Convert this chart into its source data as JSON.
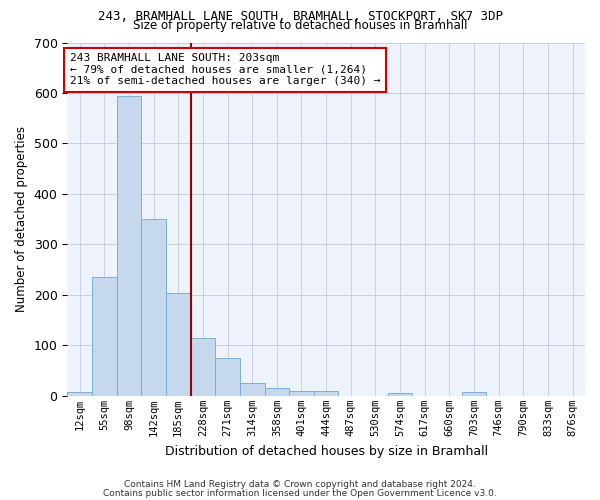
{
  "title_line1": "243, BRAMHALL LANE SOUTH, BRAMHALL, STOCKPORT, SK7 3DP",
  "title_line2": "Size of property relative to detached houses in Bramhall",
  "xlabel": "Distribution of detached houses by size in Bramhall",
  "ylabel": "Number of detached properties",
  "bar_color": "#c5d8ee",
  "bar_edge_color": "#7aafd4",
  "background_color": "#edf2fb",
  "grid_color": "#c8cfe0",
  "bin_labels": [
    "12sqm",
    "55sqm",
    "98sqm",
    "142sqm",
    "185sqm",
    "228sqm",
    "271sqm",
    "314sqm",
    "358sqm",
    "401sqm",
    "444sqm",
    "487sqm",
    "530sqm",
    "574sqm",
    "617sqm",
    "660sqm",
    "703sqm",
    "746sqm",
    "790sqm",
    "833sqm",
    "876sqm"
  ],
  "bar_heights": [
    8,
    235,
    595,
    350,
    203,
    115,
    75,
    25,
    15,
    10,
    10,
    0,
    0,
    5,
    0,
    0,
    8,
    0,
    0,
    0,
    0
  ],
  "ylim": [
    0,
    700
  ],
  "yticks": [
    0,
    100,
    200,
    300,
    400,
    500,
    600,
    700
  ],
  "red_line_x": 4.5,
  "annotation_text": "243 BRAMHALL LANE SOUTH: 203sqm\n← 79% of detached houses are smaller (1,264)\n21% of semi-detached houses are larger (340) →",
  "annotation_box_color": "#ffffff",
  "annotation_box_edge": "#cc0000",
  "footer_line1": "Contains HM Land Registry data © Crown copyright and database right 2024.",
  "footer_line2": "Contains public sector information licensed under the Open Government Licence v3.0."
}
